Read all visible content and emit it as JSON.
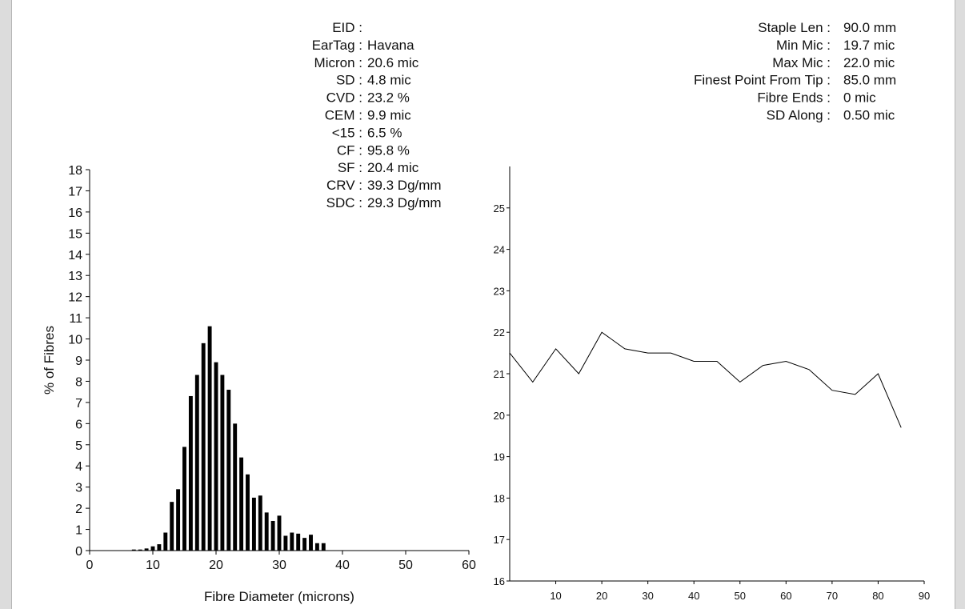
{
  "left_stats": [
    {
      "key": "EID :",
      "value": ""
    },
    {
      "key": "EarTag :",
      "value": "Havana"
    },
    {
      "key": "Micron :",
      "value": "20.6 mic"
    },
    {
      "key": "SD :",
      "value": "4.8 mic"
    },
    {
      "key": "CVD :",
      "value": "23.2 %"
    },
    {
      "key": "CEM :",
      "value": "9.9 mic"
    },
    {
      "key": "<15 :",
      "value": "6.5 %"
    },
    {
      "key": "CF :",
      "value": "95.8 %"
    },
    {
      "key": "SF :",
      "value": "20.4 mic"
    },
    {
      "key": "CRV :",
      "value": "39.3 Dg/mm"
    },
    {
      "key": "SDC :",
      "value": "29.3 Dg/mm"
    }
  ],
  "right_stats": [
    {
      "key": "Staple Len :",
      "value": "90.0 mm"
    },
    {
      "key": "Min Mic :",
      "value": "19.7 mic"
    },
    {
      "key": "Max Mic :",
      "value": "22.0 mic"
    },
    {
      "key": "Finest Point From Tip :",
      "value": "85.0 mm"
    },
    {
      "key": "Fibre Ends :",
      "value": "0 mic"
    },
    {
      "key": "SD Along :",
      "value": "0.50 mic"
    }
  ],
  "chart_data": [
    {
      "type": "bar",
      "xlabel": "Fibre Diameter (microns)",
      "ylabel": "% of Fibres",
      "xlim": [
        0,
        60
      ],
      "ylim": [
        0,
        18
      ],
      "xticks": [
        0,
        10,
        20,
        30,
        40,
        50,
        60
      ],
      "yticks": [
        0,
        1,
        2,
        3,
        4,
        5,
        6,
        7,
        8,
        9,
        10,
        11,
        12,
        13,
        14,
        15,
        16,
        17,
        18
      ],
      "x": [
        7,
        8,
        9,
        10,
        11,
        12,
        13,
        14,
        15,
        16,
        17,
        18,
        19,
        20,
        21,
        22,
        23,
        24,
        25,
        26,
        27,
        28,
        29,
        30,
        31,
        32,
        33,
        34,
        35,
        36,
        37
      ],
      "values": [
        0.05,
        0.05,
        0.1,
        0.2,
        0.3,
        0.85,
        2.3,
        2.9,
        4.9,
        7.3,
        8.3,
        9.8,
        10.6,
        8.9,
        8.3,
        7.6,
        6.0,
        4.4,
        3.6,
        2.5,
        2.6,
        1.8,
        1.4,
        1.65,
        0.7,
        0.85,
        0.8,
        0.6,
        0.75,
        0.35,
        0.35
      ]
    },
    {
      "type": "line",
      "xlim": [
        0,
        90
      ],
      "ylim": [
        16,
        26
      ],
      "xticks": [
        10,
        20,
        30,
        40,
        50,
        60,
        70,
        80,
        90
      ],
      "yticks": [
        16,
        17,
        18,
        19,
        20,
        21,
        22,
        23,
        24,
        25
      ],
      "x": [
        0,
        5,
        10,
        15,
        20,
        25,
        30,
        35,
        40,
        45,
        50,
        55,
        60,
        65,
        70,
        75,
        80,
        85
      ],
      "y": [
        21.5,
        20.8,
        21.6,
        21.0,
        22.0,
        21.6,
        21.5,
        21.5,
        21.3,
        21.3,
        20.8,
        21.2,
        21.3,
        21.1,
        20.6,
        20.5,
        21.0,
        19.7
      ]
    }
  ]
}
